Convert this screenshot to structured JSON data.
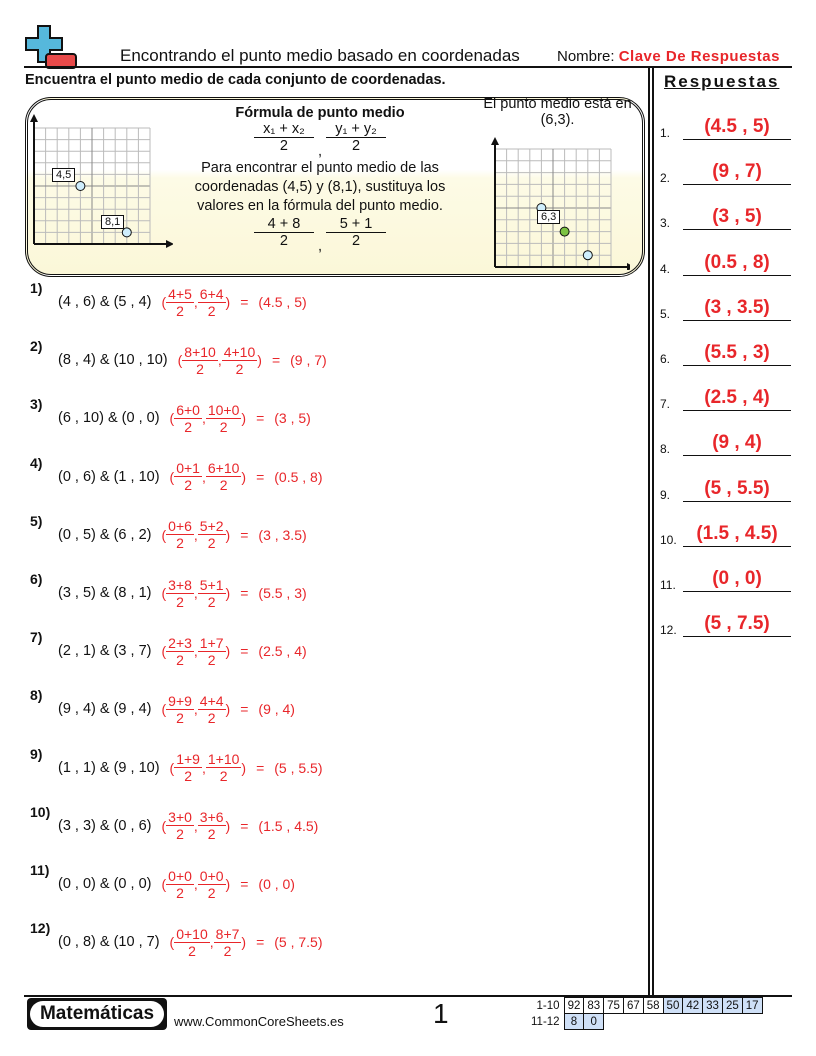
{
  "header": {
    "title": "Encontrando el punto medio basado en coordenadas",
    "name_label": "Nombre:",
    "name_value": "Clave De Respuestas"
  },
  "instructions": "Encuentra el punto medio de cada conjunto de coordenadas.",
  "answers_title": "Respuestas",
  "example": {
    "formula_title": "Fórmula de punto medio",
    "fx_num": "x₁ + x₂",
    "fy_num": "y₁ + y₂",
    "den": "2",
    "comma": ",",
    "text": "Para encontrar el punto medio de las coordenadas (4,5) y (8,1), sustituya los valores en la fórmula del punto medio.",
    "sx_num": "4 + 8",
    "sy_num": "5 + 1",
    "point_a": "4,5",
    "point_b": "8,1",
    "midpoint_label": "6,3",
    "result_text": "El punto medio está en",
    "result_value": "(6,3)."
  },
  "problems": [
    {
      "n": "1)",
      "pts": "(4 , 6) & (5 , 4)",
      "xn": "4+5",
      "yn": "6+4",
      "res": "(4.5 , 5)"
    },
    {
      "n": "2)",
      "pts": "(8 , 4) & (10 , 10)",
      "xn": "8+10",
      "yn": "4+10",
      "res": "(9 , 7)"
    },
    {
      "n": "3)",
      "pts": "(6 , 10) & (0 , 0)",
      "xn": "6+0",
      "yn": "10+0",
      "res": "(3 , 5)"
    },
    {
      "n": "4)",
      "pts": "(0 , 6) & (1 , 10)",
      "xn": "0+1",
      "yn": "6+10",
      "res": "(0.5 , 8)"
    },
    {
      "n": "5)",
      "pts": "(0 , 5) & (6 , 2)",
      "xn": "0+6",
      "yn": "5+2",
      "res": "(3 , 3.5)"
    },
    {
      "n": "6)",
      "pts": "(3 , 5) & (8 , 1)",
      "xn": "3+8",
      "yn": "5+1",
      "res": "(5.5 , 3)"
    },
    {
      "n": "7)",
      "pts": "(2 , 1) & (3 , 7)",
      "xn": "2+3",
      "yn": "1+7",
      "res": "(2.5 , 4)"
    },
    {
      "n": "8)",
      "pts": "(9 , 4) & (9 , 4)",
      "xn": "9+9",
      "yn": "4+4",
      "res": "(9 , 4)"
    },
    {
      "n": "9)",
      "pts": "(1 , 1) & (9 , 10)",
      "xn": "1+9",
      "yn": "1+10",
      "res": "(5 , 5.5)"
    },
    {
      "n": "10)",
      "pts": "(3 , 3) & (0 , 6)",
      "xn": "3+0",
      "yn": "3+6",
      "res": "(1.5 , 4.5)"
    },
    {
      "n": "11)",
      "pts": "(0 , 0) & (0 , 0)",
      "xn": "0+0",
      "yn": "0+0",
      "res": "(0 , 0)"
    },
    {
      "n": "12)",
      "pts": "(0 , 8) & (10 , 7)",
      "xn": "0+10",
      "yn": "8+7",
      "res": "(5 , 7.5)"
    }
  ],
  "den": "2",
  "eq": "=",
  "answers": [
    {
      "l": "1.",
      "v": "(4.5 , 5)"
    },
    {
      "l": "2.",
      "v": "(9 , 7)"
    },
    {
      "l": "3.",
      "v": "(3 , 5)"
    },
    {
      "l": "4.",
      "v": "(0.5 , 8)"
    },
    {
      "l": "5.",
      "v": "(3 , 3.5)"
    },
    {
      "l": "6.",
      "v": "(5.5 , 3)"
    },
    {
      "l": "7.",
      "v": "(2.5 , 4)"
    },
    {
      "l": "8.",
      "v": "(9 , 4)"
    },
    {
      "l": "9.",
      "v": "(5 , 5.5)"
    },
    {
      "l": "10.",
      "v": "(1.5 , 4.5)"
    },
    {
      "l": "11.",
      "v": "(0 , 0)"
    },
    {
      "l": "12.",
      "v": "(5 , 7.5)"
    }
  ],
  "footer": {
    "logo": "Matemáticas",
    "site": "www.CommonCoreSheets.es",
    "page": "1",
    "score_rows": [
      {
        "label": "1-10",
        "values": [
          "92",
          "83",
          "75",
          "67",
          "58",
          "50",
          "42",
          "33",
          "25",
          "17"
        ]
      },
      {
        "label": "11-12",
        "values": [
          "8",
          "0"
        ]
      }
    ]
  },
  "colors": {
    "answer": "#e8262a",
    "logo_plus": "#56b8dc",
    "logo_minus": "#e84a4a",
    "point": "#cfeefc",
    "midpoint": "#7cc242",
    "score_highlight": "#cfe0f7"
  }
}
